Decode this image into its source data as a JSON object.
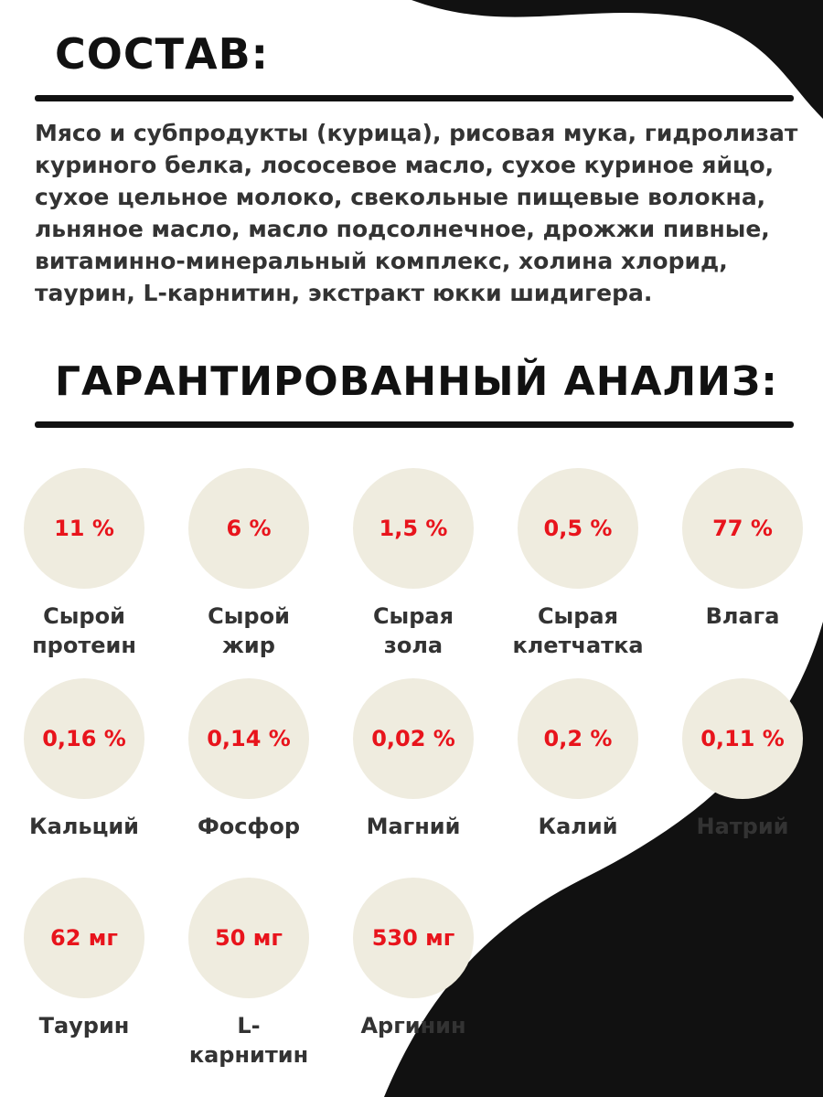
{
  "composition": {
    "title": "СОСТАВ:",
    "text": "Мясо и субпродукты (курица), рисовая мука, гидролизат куриного белка, лососевое масло, сухое куриное яйцо, сухое цельное молоко, свекольные пищевые волокна, льняное масло, масло подсолнечное, дрожжи пивные, витаминно-минеральный комплекс, холина хлорид, таурин, L-карнитин, экстракт юкки шидигера."
  },
  "analysis": {
    "title": "ГАРАНТИРОВАННЫЙ АНАЛИЗ:",
    "items": [
      {
        "value": "11 %",
        "label": "Сырой протеин"
      },
      {
        "value": "6 %",
        "label": "Сырой жир"
      },
      {
        "value": "1,5 %",
        "label": "Сырая зола"
      },
      {
        "value": "0,5 %",
        "label": "Сырая клетчатка"
      },
      {
        "value": "77 %",
        "label": "Влага"
      },
      {
        "value": "0,16 %",
        "label": "Кальций"
      },
      {
        "value": "0,14 %",
        "label": "Фосфор"
      },
      {
        "value": "0,02 %",
        "label": "Магний"
      },
      {
        "value": "0,2 %",
        "label": "Калий"
      },
      {
        "value": "0,11 %",
        "label": "Натрий"
      },
      {
        "value": "62 мг",
        "label": "Таурин"
      },
      {
        "value": "50 мг",
        "label": "L-карнитин"
      },
      {
        "value": "530 мг",
        "label": "Аргинин"
      }
    ]
  }
}
